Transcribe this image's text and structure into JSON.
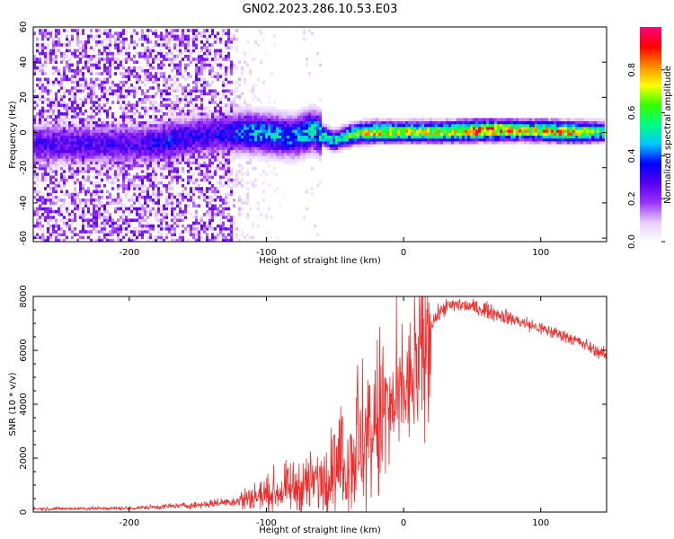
{
  "title": "GN02.2023.286.10.53.E03",
  "colors": {
    "snr_line": "#ee2c2c",
    "frame": "#000000",
    "colormap": [
      "#ffffff",
      "#e6ccff",
      "#9a33ff",
      "#5500ee",
      "#0000ff",
      "#00c8ff",
      "#00ff80",
      "#33ff00",
      "#ffff00",
      "#ff8800",
      "#ff0000",
      "#ff0080"
    ]
  },
  "chart_data": [
    {
      "type": "heatmap",
      "name": "spectrogram",
      "xlabel": "Height of straight line (km)",
      "ylabel": "Frequency (Hz)",
      "xlim": [
        -270,
        148
      ],
      "ylim": [
        -62,
        60
      ],
      "xticks": [
        -200,
        -100,
        0,
        100
      ],
      "yticks": [
        -60,
        -40,
        -20,
        0,
        20,
        40,
        60
      ],
      "xtick_labels": [
        "-200",
        "-100",
        "0",
        "100"
      ],
      "ytick_labels": [
        "-60",
        "-40",
        "-20",
        "0",
        "20",
        "40",
        "60"
      ],
      "grid": false,
      "colorbar": {
        "label": "Normalized spectral amplitude",
        "range": [
          0,
          1
        ],
        "ticks": [
          0.0,
          0.2,
          0.4,
          0.6,
          0.8
        ],
        "tick_labels": [
          "0.0",
          "0.2",
          "0.4",
          "0.6",
          "0.8"
        ]
      },
      "ridge": {
        "description_points": [
          {
            "x": -190,
            "f": -6,
            "a": 0.28
          },
          {
            "x": -170,
            "f": -4,
            "a": 0.35
          },
          {
            "x": -150,
            "f": -1,
            "a": 0.3
          },
          {
            "x": -130,
            "f": 0,
            "a": 0.32
          },
          {
            "x": -115,
            "f": 1,
            "a": 0.42
          },
          {
            "x": -100,
            "f": 0,
            "a": 0.45
          },
          {
            "x": -80,
            "f": -2,
            "a": 0.42
          },
          {
            "x": -65,
            "f": 2,
            "a": 0.5
          },
          {
            "x": -50,
            "f": -4,
            "a": 0.5
          },
          {
            "x": -35,
            "f": 0,
            "a": 0.62
          },
          {
            "x": -20,
            "f": 1,
            "a": 0.75
          },
          {
            "x": 0,
            "f": 1,
            "a": 0.68
          },
          {
            "x": 30,
            "f": 1,
            "a": 0.7
          },
          {
            "x": 60,
            "f": 2,
            "a": 0.88
          },
          {
            "x": 90,
            "f": 2,
            "a": 0.7
          },
          {
            "x": 120,
            "f": 1,
            "a": 0.78
          },
          {
            "x": 148,
            "f": 1,
            "a": 0.55
          }
        ]
      }
    },
    {
      "type": "line",
      "name": "snr",
      "xlabel": "Height of straight line (km)",
      "ylabel": "SNR (10 * v/v)",
      "xlim": [
        -270,
        148
      ],
      "ylim": [
        0,
        8000
      ],
      "xticks": [
        -200,
        -100,
        0,
        100
      ],
      "yticks": [
        0,
        2000,
        4000,
        6000,
        8000
      ],
      "xtick_labels": [
        "-200",
        "-100",
        "0",
        "100"
      ],
      "ytick_labels": [
        "0",
        "2000",
        "4000",
        "6000",
        "8000"
      ],
      "grid": false,
      "envelope": [
        {
          "x": -270,
          "y": 120
        },
        {
          "x": -200,
          "y": 140
        },
        {
          "x": -150,
          "y": 260
        },
        {
          "x": -120,
          "y": 420
        },
        {
          "x": -100,
          "y": 650
        },
        {
          "x": -80,
          "y": 900
        },
        {
          "x": -60,
          "y": 1200
        },
        {
          "x": -45,
          "y": 1700
        },
        {
          "x": -35,
          "y": 2300
        },
        {
          "x": -25,
          "y": 2600
        },
        {
          "x": -15,
          "y": 3600
        },
        {
          "x": -5,
          "y": 3900
        },
        {
          "x": 10,
          "y": 5200
        },
        {
          "x": 20,
          "y": 7000
        },
        {
          "x": 30,
          "y": 7600
        },
        {
          "x": 40,
          "y": 7700
        },
        {
          "x": 60,
          "y": 7500
        },
        {
          "x": 80,
          "y": 7150
        },
        {
          "x": 100,
          "y": 6800
        },
        {
          "x": 120,
          "y": 6500
        },
        {
          "x": 148,
          "y": 5800
        }
      ]
    }
  ]
}
